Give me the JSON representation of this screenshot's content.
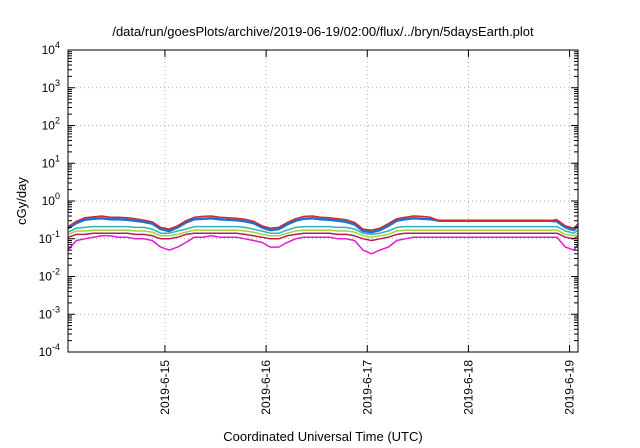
{
  "chart_data": {
    "type": "line",
    "title": "/data/run/goesPlots/archive/2019-06-19/02:00/flux/../bryn/5daysEarth.plot",
    "xlabel": "Coordinated Universal Time (UTC)",
    "ylabel": "cGy/day",
    "y_scale": "log",
    "ylim": [
      0.0001,
      10000
    ],
    "xlim": [
      "2019-06-14T01:00",
      "2019-06-19T02:00"
    ],
    "grid": true,
    "grid_style": "dotted",
    "legend": "none",
    "y_ticks": [
      {
        "value": 0.0001,
        "base": "10",
        "exp": "-4"
      },
      {
        "value": 0.001,
        "base": "10",
        "exp": "-3"
      },
      {
        "value": 0.01,
        "base": "10",
        "exp": "-2"
      },
      {
        "value": 0.1,
        "base": "10",
        "exp": "-1"
      },
      {
        "value": 1,
        "base": "10",
        "exp": "0"
      },
      {
        "value": 10,
        "base": "10",
        "exp": "1"
      },
      {
        "value": 100,
        "base": "10",
        "exp": "2"
      },
      {
        "value": 1000,
        "base": "10",
        "exp": "3"
      },
      {
        "value": 10000,
        "base": "10",
        "exp": "4"
      }
    ],
    "x_ticks": [
      {
        "value": "2019-06-15T00:00",
        "label": "2019-6-15"
      },
      {
        "value": "2019-06-16T00:00",
        "label": "2019-6-16"
      },
      {
        "value": "2019-06-17T00:00",
        "label": "2019-6-17"
      },
      {
        "value": "2019-06-18T00:00",
        "label": "2019-6-18"
      },
      {
        "value": "2019-06-19T00:00",
        "label": "2019-6-19"
      }
    ],
    "x": [
      "2019-06-14T01:00",
      "2019-06-14T03:00",
      "2019-06-14T05:00",
      "2019-06-14T07:00",
      "2019-06-14T09:00",
      "2019-06-14T11:00",
      "2019-06-14T13:00",
      "2019-06-14T15:00",
      "2019-06-14T17:00",
      "2019-06-14T19:00",
      "2019-06-14T21:00",
      "2019-06-14T23:00",
      "2019-06-15T01:00",
      "2019-06-15T03:00",
      "2019-06-15T05:00",
      "2019-06-15T07:00",
      "2019-06-15T09:00",
      "2019-06-15T11:00",
      "2019-06-15T13:00",
      "2019-06-15T15:00",
      "2019-06-15T17:00",
      "2019-06-15T19:00",
      "2019-06-15T21:00",
      "2019-06-15T23:00",
      "2019-06-16T01:00",
      "2019-06-16T03:00",
      "2019-06-16T05:00",
      "2019-06-16T07:00",
      "2019-06-16T09:00",
      "2019-06-16T11:00",
      "2019-06-16T13:00",
      "2019-06-16T15:00",
      "2019-06-16T17:00",
      "2019-06-16T19:00",
      "2019-06-16T21:00",
      "2019-06-16T23:00",
      "2019-06-17T01:00",
      "2019-06-17T03:00",
      "2019-06-17T05:00",
      "2019-06-17T07:00",
      "2019-06-17T09:00",
      "2019-06-17T11:00",
      "2019-06-17T13:00",
      "2019-06-17T15:00",
      "2019-06-17T17:00",
      "2019-06-17T19:00",
      "2019-06-17T21:00",
      "2019-06-17T23:00",
      "2019-06-18T01:00",
      "2019-06-18T03:00",
      "2019-06-18T05:00",
      "2019-06-18T07:00",
      "2019-06-18T09:00",
      "2019-06-18T11:00",
      "2019-06-18T13:00",
      "2019-06-18T15:00",
      "2019-06-18T17:00",
      "2019-06-18T19:00",
      "2019-06-18T21:00",
      "2019-06-18T23:00",
      "2019-06-19T01:00",
      "2019-06-19T02:00"
    ],
    "series": [
      {
        "color": "#e01bd3",
        "width": 1.5,
        "values": [
          0.05,
          0.09,
          0.1,
          0.11,
          0.12,
          0.12,
          0.11,
          0.11,
          0.1,
          0.1,
          0.09,
          0.06,
          0.05,
          0.06,
          0.08,
          0.11,
          0.11,
          0.12,
          0.11,
          0.11,
          0.11,
          0.1,
          0.09,
          0.08,
          0.06,
          0.06,
          0.08,
          0.1,
          0.11,
          0.11,
          0.11,
          0.11,
          0.1,
          0.1,
          0.09,
          0.05,
          0.04,
          0.05,
          0.06,
          0.09,
          0.1,
          0.11,
          0.11,
          0.11,
          0.11,
          0.11,
          0.11,
          0.11,
          0.11,
          0.11,
          0.11,
          0.11,
          0.11,
          0.11,
          0.11,
          0.11,
          0.11,
          0.11,
          0.11,
          0.06,
          0.05,
          0.07
        ]
      },
      {
        "color": "#c4164f",
        "width": 1.5,
        "values": [
          0.11,
          0.13,
          0.13,
          0.14,
          0.14,
          0.14,
          0.14,
          0.14,
          0.13,
          0.13,
          0.12,
          0.1,
          0.1,
          0.11,
          0.13,
          0.14,
          0.14,
          0.14,
          0.14,
          0.14,
          0.14,
          0.13,
          0.12,
          0.11,
          0.1,
          0.1,
          0.12,
          0.13,
          0.14,
          0.14,
          0.14,
          0.14,
          0.13,
          0.13,
          0.12,
          0.1,
          0.09,
          0.1,
          0.11,
          0.13,
          0.14,
          0.14,
          0.14,
          0.14,
          0.14,
          0.14,
          0.14,
          0.14,
          0.14,
          0.14,
          0.14,
          0.14,
          0.14,
          0.14,
          0.14,
          0.14,
          0.14,
          0.14,
          0.14,
          0.11,
          0.1,
          0.12
        ]
      },
      {
        "color": "#9fd83a",
        "width": 1.5,
        "values": [
          0.13,
          0.16,
          0.16,
          0.17,
          0.17,
          0.17,
          0.17,
          0.17,
          0.16,
          0.16,
          0.15,
          0.12,
          0.12,
          0.13,
          0.15,
          0.17,
          0.17,
          0.17,
          0.17,
          0.17,
          0.17,
          0.16,
          0.15,
          0.13,
          0.12,
          0.12,
          0.14,
          0.16,
          0.17,
          0.17,
          0.17,
          0.17,
          0.16,
          0.16,
          0.15,
          0.12,
          0.11,
          0.12,
          0.13,
          0.16,
          0.17,
          0.17,
          0.17,
          0.17,
          0.17,
          0.17,
          0.17,
          0.17,
          0.17,
          0.17,
          0.17,
          0.17,
          0.17,
          0.17,
          0.17,
          0.17,
          0.17,
          0.17,
          0.17,
          0.13,
          0.12,
          0.14
        ]
      },
      {
        "color": "#2bb6b8",
        "width": 1.5,
        "values": [
          0.15,
          0.19,
          0.2,
          0.21,
          0.21,
          0.21,
          0.21,
          0.21,
          0.2,
          0.2,
          0.18,
          0.14,
          0.14,
          0.16,
          0.18,
          0.21,
          0.21,
          0.21,
          0.21,
          0.21,
          0.21,
          0.2,
          0.18,
          0.16,
          0.14,
          0.14,
          0.17,
          0.2,
          0.21,
          0.21,
          0.21,
          0.21,
          0.2,
          0.2,
          0.18,
          0.14,
          0.13,
          0.14,
          0.16,
          0.2,
          0.21,
          0.21,
          0.21,
          0.21,
          0.21,
          0.21,
          0.21,
          0.21,
          0.21,
          0.21,
          0.21,
          0.21,
          0.21,
          0.21,
          0.21,
          0.21,
          0.21,
          0.21,
          0.21,
          0.16,
          0.14,
          0.17
        ]
      },
      {
        "color": "#1d6fd1",
        "width": 2.5,
        "values": [
          0.19,
          0.26,
          0.32,
          0.34,
          0.35,
          0.33,
          0.33,
          0.32,
          0.3,
          0.28,
          0.25,
          0.18,
          0.16,
          0.2,
          0.27,
          0.33,
          0.34,
          0.35,
          0.33,
          0.32,
          0.31,
          0.29,
          0.26,
          0.2,
          0.17,
          0.18,
          0.24,
          0.3,
          0.34,
          0.35,
          0.33,
          0.32,
          0.3,
          0.28,
          0.24,
          0.16,
          0.15,
          0.17,
          0.22,
          0.3,
          0.33,
          0.35,
          0.34,
          0.33,
          0.3,
          0.3,
          0.3,
          0.3,
          0.3,
          0.3,
          0.3,
          0.3,
          0.3,
          0.3,
          0.3,
          0.3,
          0.3,
          0.3,
          0.29,
          0.2,
          0.17,
          0.22
        ]
      },
      {
        "color": "#cf2a2a",
        "width": 1.5,
        "values": [
          0.21,
          0.29,
          0.36,
          0.38,
          0.4,
          0.37,
          0.37,
          0.36,
          0.34,
          0.31,
          0.28,
          0.2,
          0.18,
          0.22,
          0.3,
          0.37,
          0.39,
          0.4,
          0.37,
          0.36,
          0.35,
          0.33,
          0.29,
          0.22,
          0.19,
          0.2,
          0.27,
          0.34,
          0.39,
          0.4,
          0.37,
          0.36,
          0.34,
          0.32,
          0.27,
          0.18,
          0.17,
          0.19,
          0.25,
          0.34,
          0.37,
          0.4,
          0.39,
          0.37,
          0.3,
          0.3,
          0.3,
          0.3,
          0.3,
          0.3,
          0.3,
          0.3,
          0.3,
          0.3,
          0.3,
          0.3,
          0.3,
          0.3,
          0.32,
          0.22,
          0.19,
          0.25
        ]
      }
    ]
  }
}
